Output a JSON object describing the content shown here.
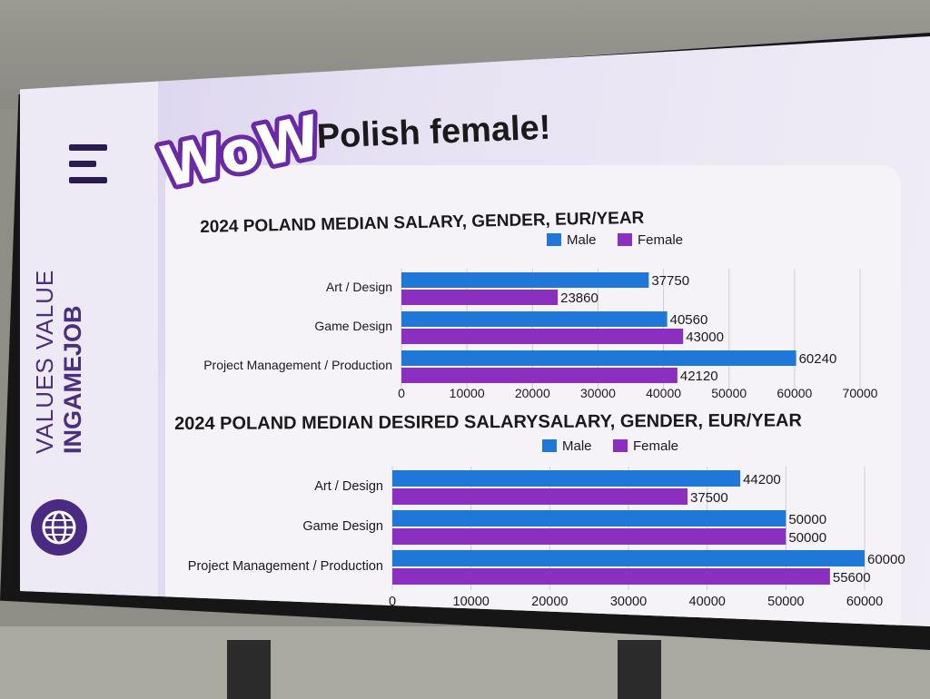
{
  "headline": "Polish female!",
  "wow_text": "WoW!",
  "brand": {
    "line1": "VALUES VALUE",
    "line2": "INGAMEJOB"
  },
  "icons": [
    "menu-icon",
    "globe-icon"
  ],
  "colors": {
    "male": "#1f77d8",
    "female": "#8a2fc0",
    "brand_purple": "#4b2a84",
    "wow_purple": "#6a2aa6"
  },
  "chart_data": [
    {
      "type": "bar",
      "orientation": "horizontal",
      "title": "2024 POLAND MEDIAN SALARY, GENDER, EUR/YEAR",
      "categories": [
        "Art / Design",
        "Game Design",
        "Project Management / Production"
      ],
      "series": [
        {
          "name": "Male",
          "values": [
            37750,
            40560,
            60240
          ]
        },
        {
          "name": "Female",
          "values": [
            23860,
            43000,
            42120
          ]
        }
      ],
      "xlim": [
        0,
        70000
      ],
      "xticks": [
        0,
        10000,
        20000,
        30000,
        40000,
        50000,
        60000,
        70000
      ],
      "legend": "top",
      "grid": true
    },
    {
      "type": "bar",
      "orientation": "horizontal",
      "title": "2024 POLAND MEDIAN DESIRED SALARYSALARY, GENDER, EUR/YEAR",
      "categories": [
        "Art / Design",
        "Game Design",
        "Project Management / Production"
      ],
      "series": [
        {
          "name": "Male",
          "values": [
            44200,
            50000,
            60000
          ]
        },
        {
          "name": "Female",
          "values": [
            37500,
            50000,
            55600
          ]
        }
      ],
      "xlim": [
        0,
        60000
      ],
      "xticks": [
        0,
        10000,
        20000,
        30000,
        40000,
        50000,
        60000
      ],
      "legend": "top",
      "grid": true
    }
  ]
}
